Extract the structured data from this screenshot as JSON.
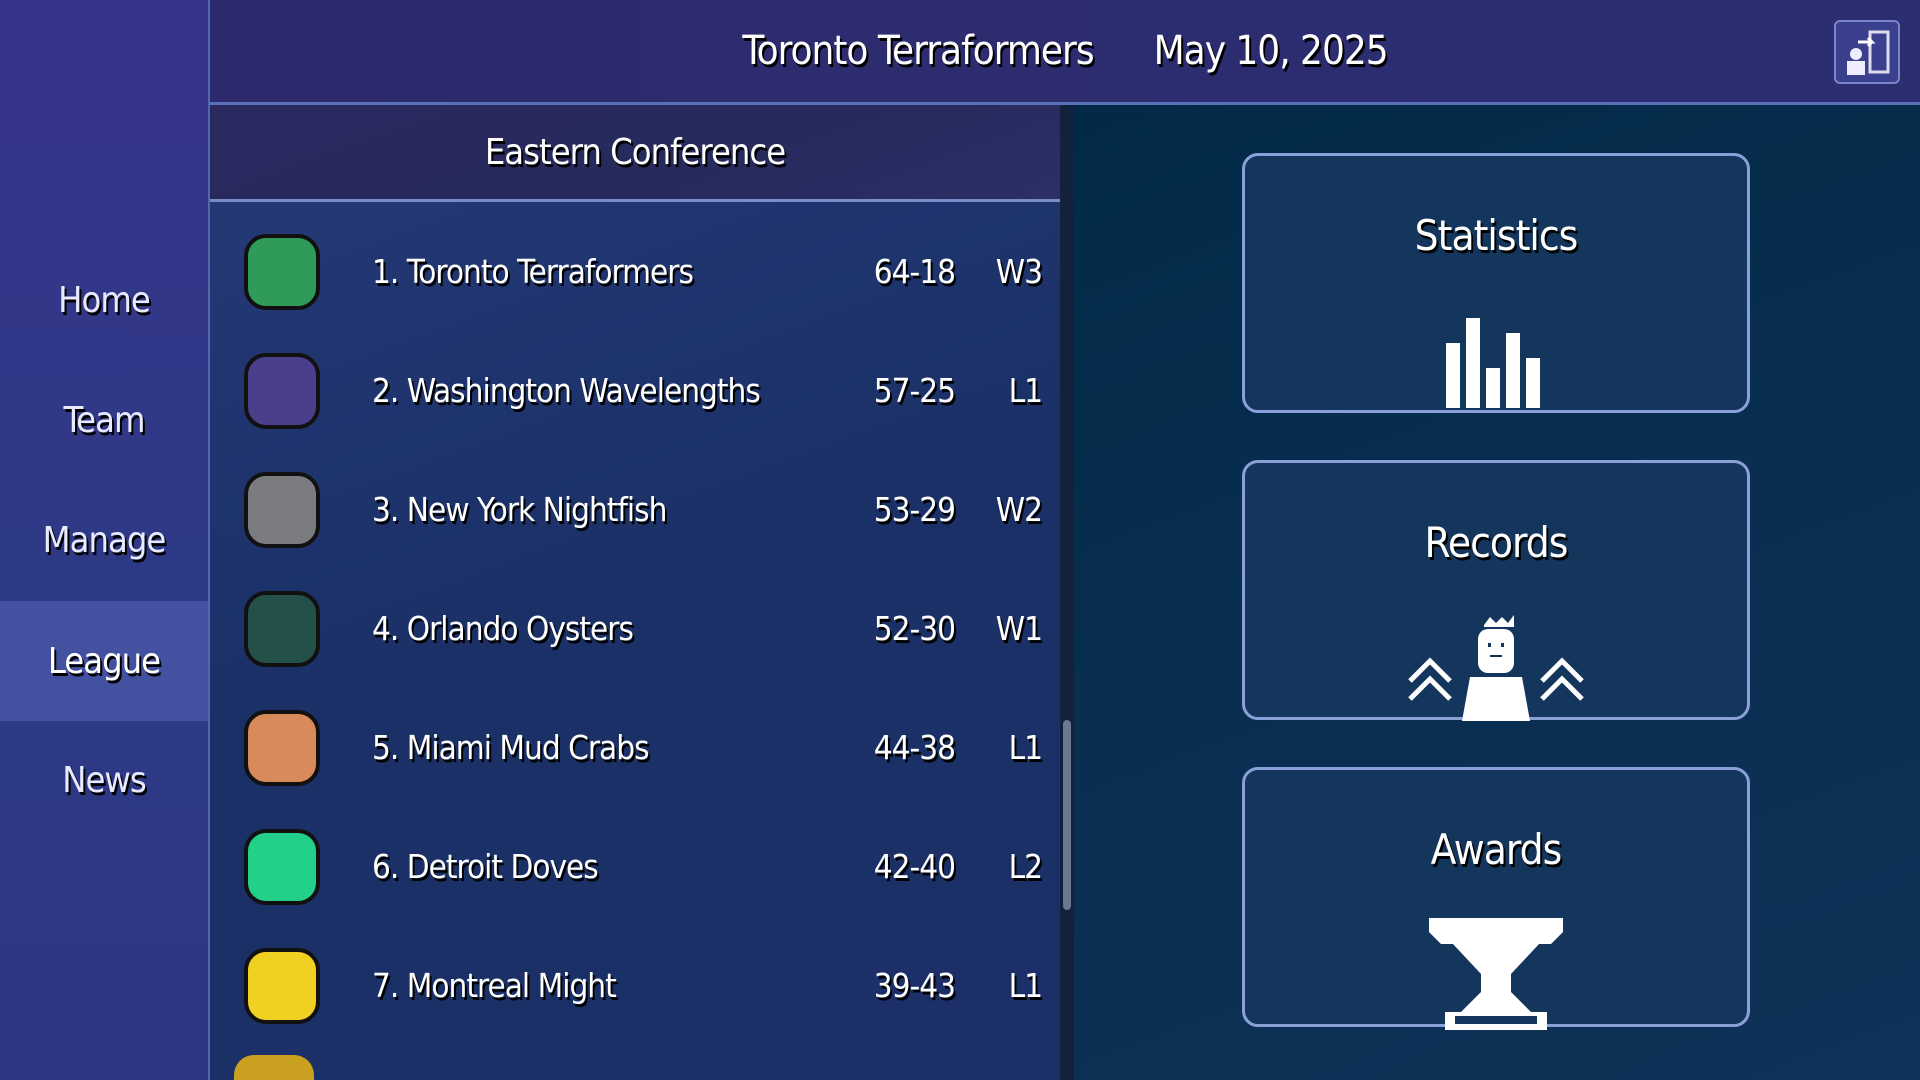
{
  "header": {
    "team": "Toronto Terraformers",
    "date": "May 10, 2025",
    "exit_icon": "exit-door-icon"
  },
  "sidebar": {
    "items": [
      {
        "label": "Home"
      },
      {
        "label": "Team"
      },
      {
        "label": "Manage"
      },
      {
        "label": "League",
        "active": true
      },
      {
        "label": "News"
      }
    ]
  },
  "standings": {
    "title": "Eastern Conference",
    "rows": [
      {
        "rank_name": "1. Toronto Terraformers",
        "record": "64-18",
        "streak": "W3",
        "logo": "green-hood-icon",
        "color": "#2f9a5a"
      },
      {
        "rank_name": "2. Washington Wavelengths",
        "record": "57-25",
        "streak": "L1",
        "logo": "purple-bug-icon",
        "color": "#4a3f8a"
      },
      {
        "rank_name": "3. New York Nightfish",
        "record": "53-29",
        "streak": "W2",
        "logo": "gray-fish-icon",
        "color": "#7a7c80"
      },
      {
        "rank_name": "4. Orlando Oysters",
        "record": "52-30",
        "streak": "W1",
        "logo": "oyster-icon",
        "color": "#24504a"
      },
      {
        "rank_name": "5. Miami Mud Crabs",
        "record": "44-38",
        "streak": "L1",
        "logo": "crab-icon",
        "color": "#d98a5a"
      },
      {
        "rank_name": "6. Detroit Doves",
        "record": "42-40",
        "streak": "L2",
        "logo": "dove-icon",
        "color": "#22d08a"
      },
      {
        "rank_name": "7. Montreal Might",
        "record": "39-43",
        "streak": "L1",
        "logo": "dumbbell-icon",
        "color": "#f0d020"
      }
    ]
  },
  "cards": [
    {
      "label": "Statistics",
      "icon": "bar-chart-icon"
    },
    {
      "label": "Records",
      "icon": "crowned-figure-icon"
    },
    {
      "label": "Awards",
      "icon": "trophy-icon"
    }
  ]
}
